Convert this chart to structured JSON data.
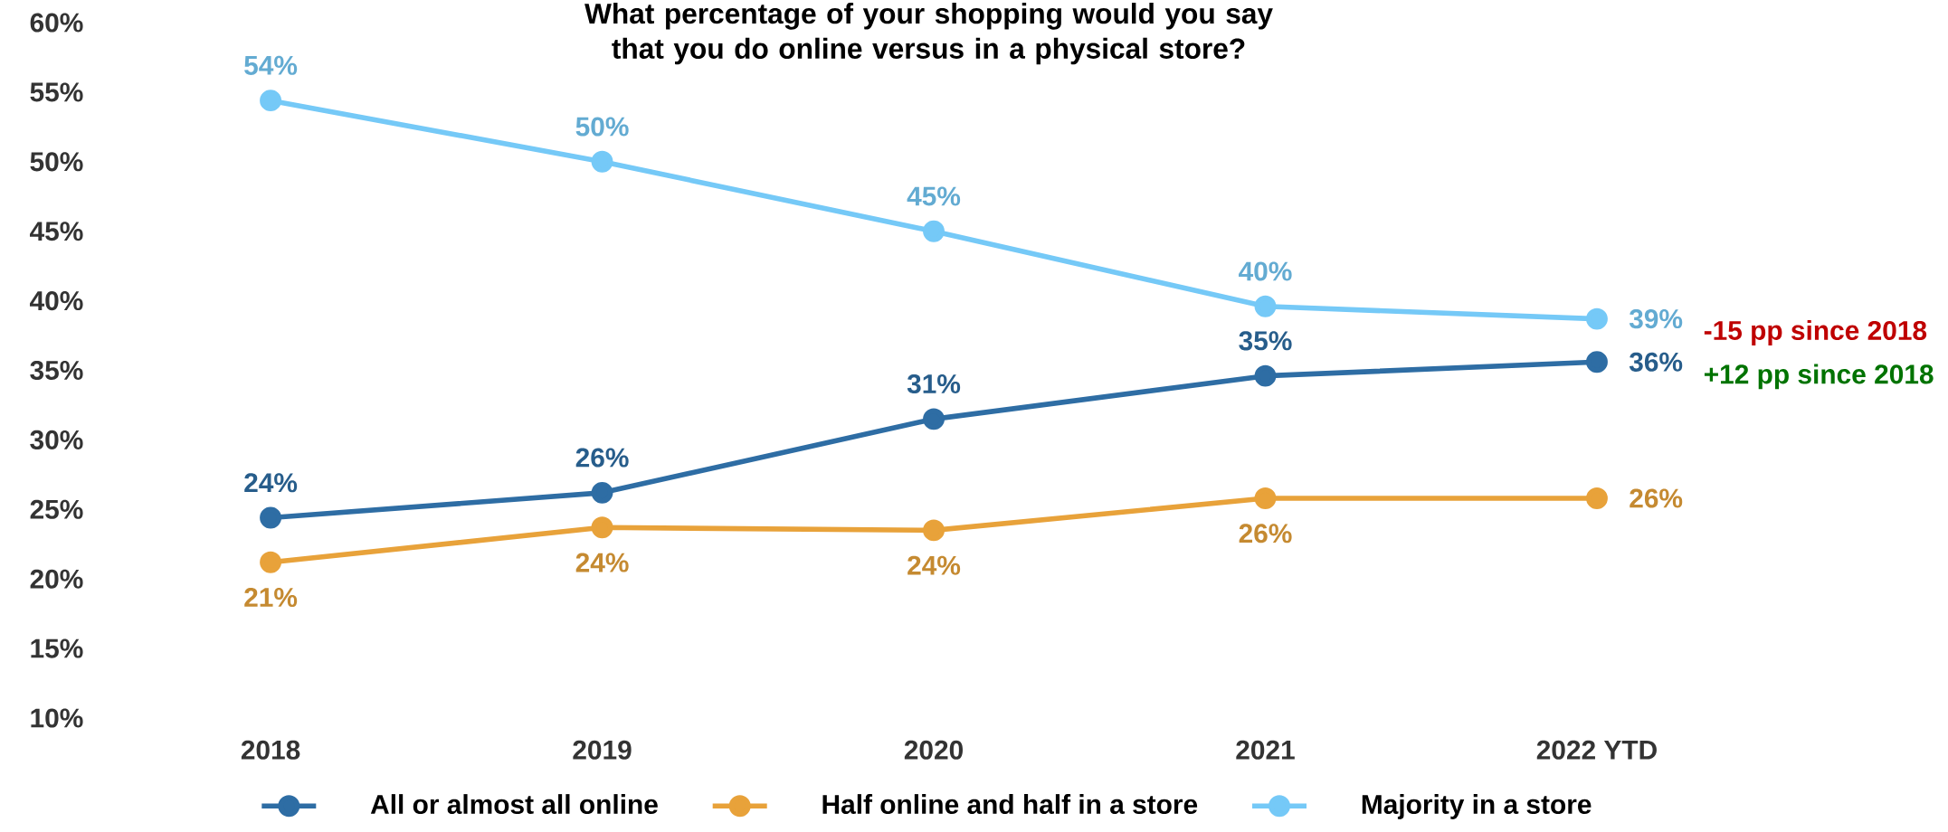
{
  "chart_data": {
    "type": "line",
    "title": "What percentage of your shopping would you say that you do online versus in a physical store?",
    "categories": [
      "2018",
      "2019",
      "2020",
      "2021",
      "2022 YTD"
    ],
    "series": [
      {
        "name": "All or almost all online",
        "color": "#2e6da4",
        "values": [
          24.4,
          26.2,
          31.5,
          34.6,
          35.6
        ],
        "value_labels": [
          "24%",
          "26%",
          "31%",
          "35%",
          "36%"
        ]
      },
      {
        "name": "Half online and half in a store",
        "color": "#e8a23a",
        "values": [
          21.2,
          23.7,
          23.5,
          25.8,
          25.8
        ],
        "value_labels": [
          "21%",
          "24%",
          "24%",
          "26%",
          "26%"
        ]
      },
      {
        "name": "Majority in a store",
        "color": "#75c9f7",
        "values": [
          54.4,
          50.0,
          45.0,
          39.6,
          38.7
        ],
        "value_labels": [
          "54%",
          "50%",
          "45%",
          "40%",
          "39%"
        ]
      }
    ],
    "ylim": [
      10,
      60
    ],
    "yticks": [
      {
        "value": 10,
        "label": "10%"
      },
      {
        "value": 15,
        "label": "15%"
      },
      {
        "value": 20,
        "label": "20%"
      },
      {
        "value": 25,
        "label": "25%"
      },
      {
        "value": 30,
        "label": "30%"
      },
      {
        "value": 35,
        "label": "35%"
      },
      {
        "value": 40,
        "label": "40%"
      },
      {
        "value": 45,
        "label": "45%"
      },
      {
        "value": 50,
        "label": "50%"
      },
      {
        "value": 55,
        "label": "55%"
      },
      {
        "value": 60,
        "label": "60%"
      }
    ],
    "annotations": [
      "-15 pp since 2018",
      "+12 pp since 2018"
    ],
    "legend": "bottom",
    "marker": "circle",
    "line_style": "solid",
    "grid": false
  }
}
